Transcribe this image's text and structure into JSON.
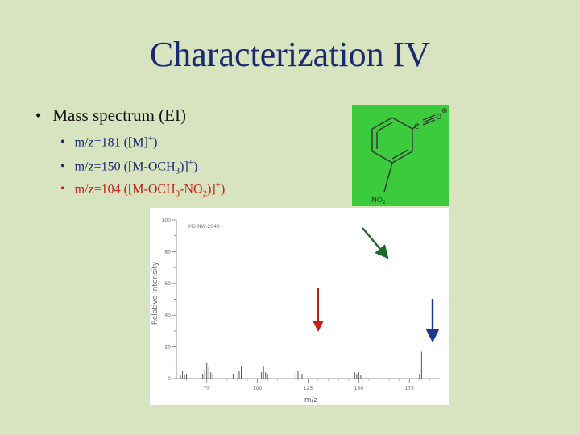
{
  "slide": {
    "title": "Characterization IV",
    "bullet": "Mass spectrum (EI)",
    "sub_bullets": [
      {
        "pre": "m/z=181 ([M]",
        "sup1": "+",
        "post": ")"
      },
      {
        "pre": "m/z=150 ([M-OCH",
        "sub1": "3",
        "mid": ")]",
        "sup1": "+",
        "post": ")"
      },
      {
        "pre": "m/z=104 ([M-OCH",
        "sub1": "3",
        "mid1": "-NO",
        "sub2": "2",
        "mid2": ")]",
        "sup1": "+",
        "post": ")"
      }
    ],
    "bullet_glyph": "•"
  },
  "molecule": {
    "atom_c": "C",
    "atom_o": "O",
    "charge": "⊕",
    "substituent": "NO",
    "substituent_sub": "2"
  },
  "chart_data": {
    "type": "bar",
    "legend_text": "MS-NW-2040",
    "xlabel": "m/z",
    "ylabel": "Relative Intensity",
    "xlim": [
      60,
      190
    ],
    "ylim": [
      0,
      100
    ],
    "x_ticks": [
      75,
      100,
      125,
      150,
      175
    ],
    "x_tick_labels": [
      "75",
      "100",
      "125",
      "150",
      "175"
    ],
    "y_ticks": [
      0,
      20,
      40,
      60,
      80,
      100
    ],
    "y_tick_labels": [
      "0",
      "20",
      "40",
      "60",
      "80",
      "100"
    ],
    "peaks": [
      {
        "x": 62,
        "y": 2
      },
      {
        "x": 63,
        "y": 5
      },
      {
        "x": 64,
        "y": 2
      },
      {
        "x": 65,
        "y": 3
      },
      {
        "x": 73,
        "y": 3
      },
      {
        "x": 74,
        "y": 6
      },
      {
        "x": 75,
        "y": 10
      },
      {
        "x": 76,
        "y": 7
      },
      {
        "x": 77,
        "y": 4
      },
      {
        "x": 78,
        "y": 3
      },
      {
        "x": 88,
        "y": 3
      },
      {
        "x": 91,
        "y": 5
      },
      {
        "x": 92,
        "y": 8
      },
      {
        "x": 102,
        "y": 4
      },
      {
        "x": 103,
        "y": 8
      },
      {
        "x": 104,
        "y": 4
      },
      {
        "x": 105,
        "y": 3
      },
      {
        "x": 119,
        "y": 4
      },
      {
        "x": 120,
        "y": 5
      },
      {
        "x": 121,
        "y": 4
      },
      {
        "x": 122,
        "y": 3
      },
      {
        "x": 148,
        "y": 4
      },
      {
        "x": 149,
        "y": 3
      },
      {
        "x": 150,
        "y": 4
      },
      {
        "x": 151,
        "y": 2
      },
      {
        "x": 180,
        "y": 3
      },
      {
        "x": 181,
        "y": 17
      }
    ],
    "colors": {
      "bars": "#555555",
      "axis": "#777777",
      "arrow_red": "#c0221a",
      "arrow_blue": "#1e3a8a",
      "arrow_green": "#1d6b2a"
    }
  }
}
